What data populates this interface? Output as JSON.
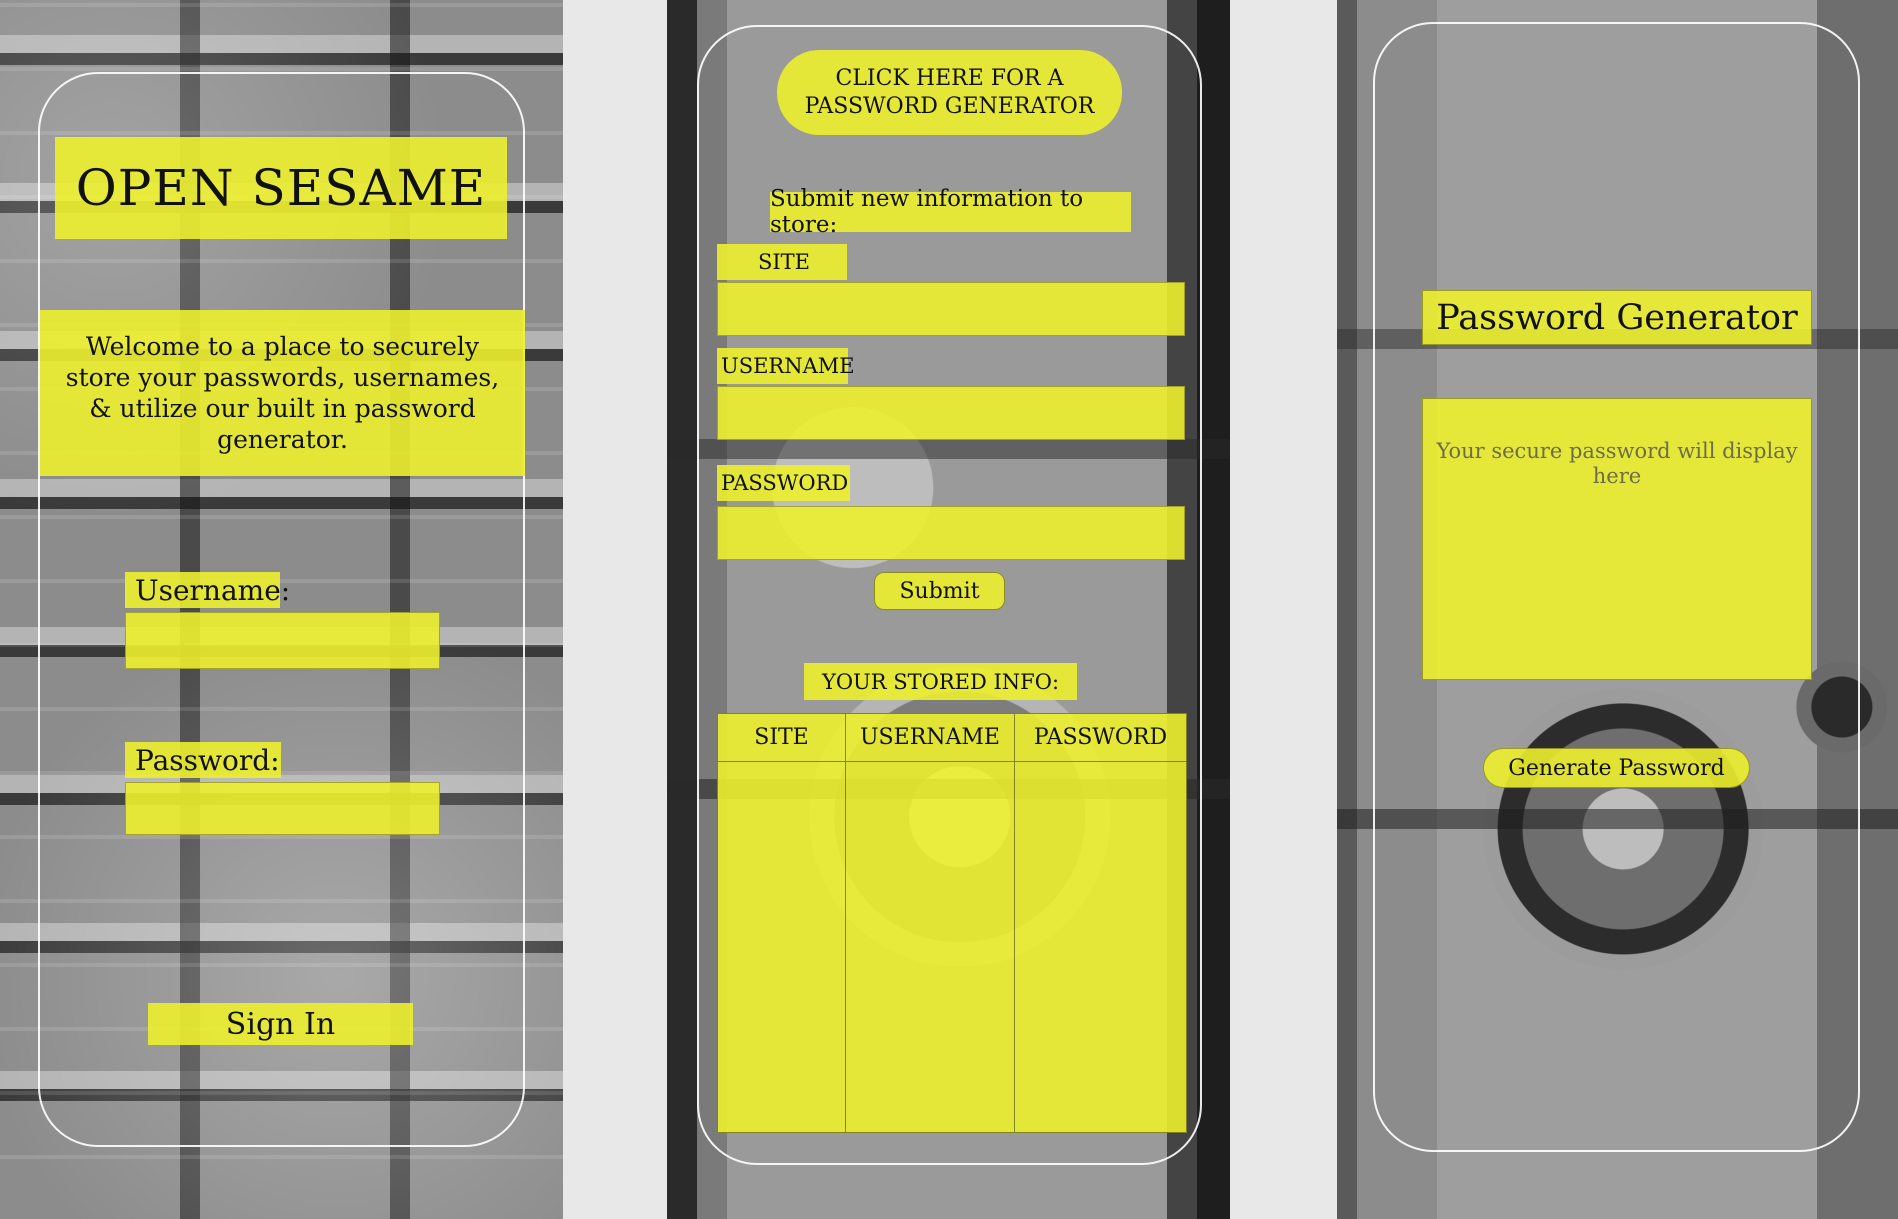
{
  "login_screen": {
    "title": "OPEN SESAME",
    "welcome_text": "Welcome to a place to securely store your passwords, usernames, & utilize our built in password generator.",
    "username_label": "Username:",
    "password_label": "Password:",
    "username_value": "",
    "password_value": "",
    "sign_in_label": "Sign In"
  },
  "store_screen": {
    "generator_link": "CLICK HERE FOR A PASSWORD GENERATOR",
    "submit_heading": "Submit new information to store:",
    "site_label": "SITE",
    "username_label": "USERNAME",
    "password_label": "PASSWORD",
    "site_value": "",
    "username_value": "",
    "password_value": "",
    "submit_label": "Submit",
    "stored_heading": "YOUR STORED INFO:",
    "table_headers": [
      "SITE",
      "USERNAME",
      "PASSWORD"
    ],
    "table_rows": []
  },
  "generator_screen": {
    "title": "Password Generator",
    "placeholder": "Your secure password will display here",
    "generate_label": "Generate Password"
  },
  "colors": {
    "accent_yellow": "#ECEE2E",
    "page_background": "#E8E8E8",
    "frame_outline": "#FFFFFF"
  }
}
